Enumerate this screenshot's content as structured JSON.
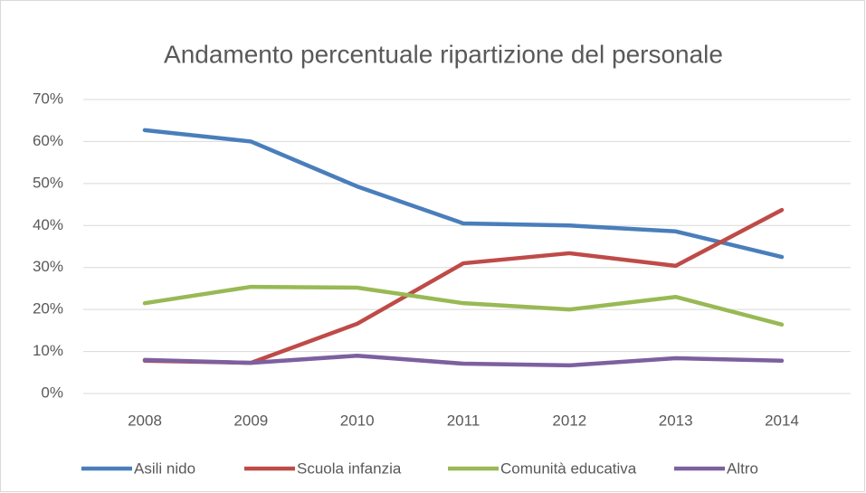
{
  "chart_data": {
    "type": "line",
    "title": "Andamento percentuale ripartizione del personale",
    "categories": [
      "2008",
      "2009",
      "2010",
      "2011",
      "2012",
      "2013",
      "2014"
    ],
    "series": [
      {
        "name": "Asili nido",
        "color": "#4a7ebb",
        "values": [
          62.7,
          60,
          49.3,
          40.5,
          40,
          38.6,
          32.5
        ]
      },
      {
        "name": "Scuola infanzia",
        "color": "#be4b48",
        "values": [
          7.8,
          7.3,
          16.6,
          31,
          33.4,
          30.4,
          43.7
        ]
      },
      {
        "name": "Comunità educativa",
        "color": "#98b954",
        "values": [
          21.5,
          25.4,
          25.2,
          21.5,
          20,
          23,
          16.4
        ]
      },
      {
        "name": "Altro",
        "color": "#7d60a0",
        "values": [
          8,
          7.3,
          9,
          7.1,
          6.7,
          8.4,
          7.8
        ]
      }
    ],
    "ylim": [
      0,
      70
    ],
    "yticks": [
      {
        "value": 0,
        "label": "0%"
      },
      {
        "value": 10,
        "label": "10%"
      },
      {
        "value": 20,
        "label": "20%"
      },
      {
        "value": 30,
        "label": "30%"
      },
      {
        "value": 40,
        "label": "40%"
      },
      {
        "value": 50,
        "label": "50%"
      },
      {
        "value": 60,
        "label": "60%"
      },
      {
        "value": 70,
        "label": "70%"
      }
    ],
    "grid": true,
    "legend": "bottom"
  }
}
